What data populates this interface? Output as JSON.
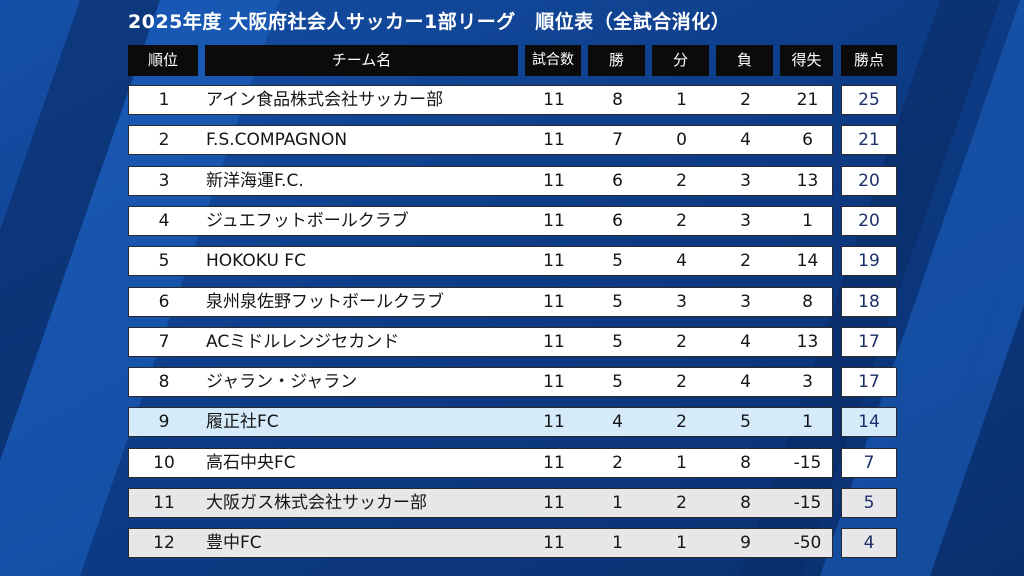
{
  "title": "2025年度 大阪府社会人サッカー1部リーグ　順位表（全試合消化）",
  "headers": {
    "rank": "順位",
    "team": "チーム名",
    "played": "試合数",
    "win": "勝",
    "draw": "分",
    "loss": "負",
    "gd": "得失",
    "points": "勝点"
  },
  "colors": {
    "background": "#0f3f8a",
    "header": "#0b0b0b",
    "row": "#ffffff",
    "row_alt": "#e7e7e9",
    "row_highlight": "#d6ebfa",
    "points_text": "#1c2f6b"
  },
  "rows": [
    {
      "rank": "1",
      "team": "アイン食品株式会社サッカー部",
      "played": "11",
      "win": "8",
      "draw": "1",
      "loss": "2",
      "gd": "21",
      "points": "25",
      "style": "white"
    },
    {
      "rank": "2",
      "team": "F.S.COMPAGNON",
      "played": "11",
      "win": "7",
      "draw": "0",
      "loss": "4",
      "gd": "6",
      "points": "21",
      "style": "white"
    },
    {
      "rank": "3",
      "team": "新洋海運F.C.",
      "played": "11",
      "win": "6",
      "draw": "2",
      "loss": "3",
      "gd": "13",
      "points": "20",
      "style": "white"
    },
    {
      "rank": "4",
      "team": "ジュエフットボールクラブ",
      "played": "11",
      "win": "6",
      "draw": "2",
      "loss": "3",
      "gd": "1",
      "points": "20",
      "style": "white"
    },
    {
      "rank": "5",
      "team": "HOKOKU FC",
      "played": "11",
      "win": "5",
      "draw": "4",
      "loss": "2",
      "gd": "14",
      "points": "19",
      "style": "white"
    },
    {
      "rank": "6",
      "team": "泉州泉佐野フットボールクラブ",
      "played": "11",
      "win": "5",
      "draw": "3",
      "loss": "3",
      "gd": "8",
      "points": "18",
      "style": "white"
    },
    {
      "rank": "7",
      "team": "ACミドルレンジセカンド",
      "played": "11",
      "win": "5",
      "draw": "2",
      "loss": "4",
      "gd": "13",
      "points": "17",
      "style": "white"
    },
    {
      "rank": "8",
      "team": "ジャラン・ジャラン",
      "played": "11",
      "win": "5",
      "draw": "2",
      "loss": "4",
      "gd": "3",
      "points": "17",
      "style": "white"
    },
    {
      "rank": "9",
      "team": "履正社FC",
      "played": "11",
      "win": "4",
      "draw": "2",
      "loss": "5",
      "gd": "1",
      "points": "14",
      "style": "highlight"
    },
    {
      "rank": "10",
      "team": "高石中央FC",
      "played": "11",
      "win": "2",
      "draw": "1",
      "loss": "8",
      "gd": "-15",
      "points": "7",
      "style": "white"
    },
    {
      "rank": "11",
      "team": "大阪ガス株式会社サッカー部",
      "played": "11",
      "win": "1",
      "draw": "2",
      "loss": "8",
      "gd": "-15",
      "points": "5",
      "style": "alt"
    },
    {
      "rank": "12",
      "team": "豊中FC",
      "played": "11",
      "win": "1",
      "draw": "1",
      "loss": "9",
      "gd": "-50",
      "points": "4",
      "style": "alt"
    }
  ]
}
